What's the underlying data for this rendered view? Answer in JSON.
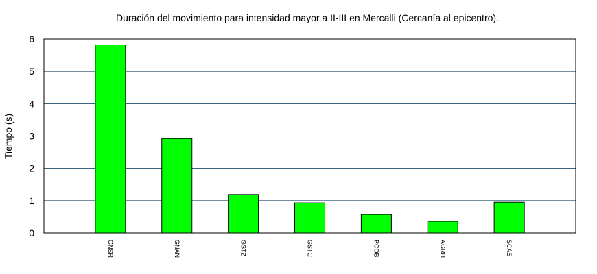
{
  "chart_data": {
    "type": "bar",
    "title": "Duración del movimiento para intensidad mayor a II-III en Mercalli (Cercanía al epicentro).",
    "xlabel": "",
    "ylabel": "Tiempo (s)",
    "ylim": [
      0,
      6
    ],
    "yticks": [
      "0",
      "1",
      "2",
      "3",
      "4",
      "5",
      "6"
    ],
    "grid": true,
    "categories": [
      "GNSR",
      "GNAN",
      "GSTZ",
      "GSTC",
      "PCOB",
      "AGRH",
      "SCAS"
    ],
    "values": [
      5.82,
      2.92,
      1.19,
      0.93,
      0.57,
      0.36,
      0.95
    ],
    "bar_color": "#00ff00",
    "grid_color": "#1f4e6e"
  }
}
